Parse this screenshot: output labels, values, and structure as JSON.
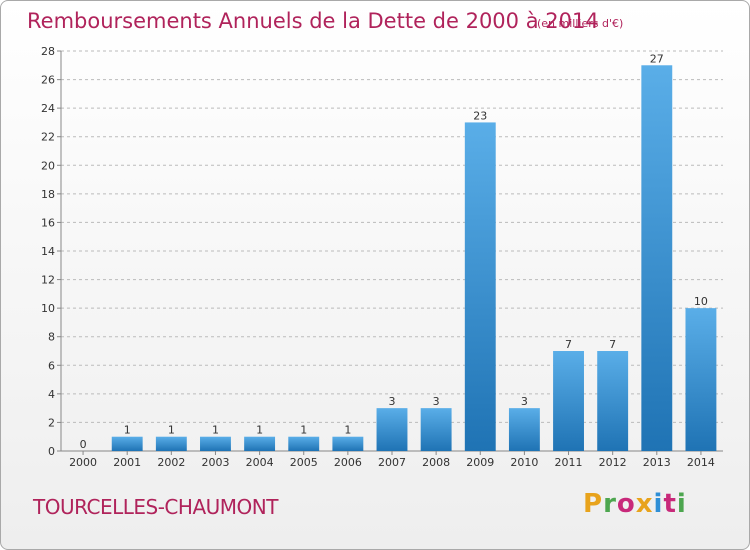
{
  "header": {
    "title": "Remboursements Annuels de la Dette de 2000 à 2014",
    "unit": "(en milliers d'€)"
  },
  "footer": {
    "commune": "TOURCELLES-CHAUMONT",
    "logo_text": "Proxiti",
    "logo_colors": [
      "#e8a31c",
      "#4da64f",
      "#c8297a",
      "#e8a31c",
      "#2f8fd6",
      "#c8297a",
      "#4da64f"
    ]
  },
  "colors": {
    "bar_top": "#5aaee8",
    "bar_bottom": "#1f73b4",
    "grid": "#bbbbbb",
    "axis": "#888888"
  },
  "chart_data": {
    "type": "bar",
    "title": "Remboursements Annuels de la Dette de 2000 à 2014",
    "subtitle": "(en milliers d'€)",
    "categories": [
      "2000",
      "2001",
      "2002",
      "2003",
      "2004",
      "2005",
      "2006",
      "2007",
      "2008",
      "2009",
      "2010",
      "2011",
      "2012",
      "2013",
      "2014"
    ],
    "values": [
      0,
      1,
      1,
      1,
      1,
      1,
      1,
      3,
      3,
      23,
      3,
      7,
      7,
      27,
      10
    ],
    "ylim": [
      0,
      28
    ],
    "yticks": [
      0,
      2,
      4,
      6,
      8,
      10,
      12,
      14,
      16,
      18,
      20,
      22,
      24,
      26,
      28
    ],
    "grid": "horizontal dashed",
    "legend": "none"
  }
}
